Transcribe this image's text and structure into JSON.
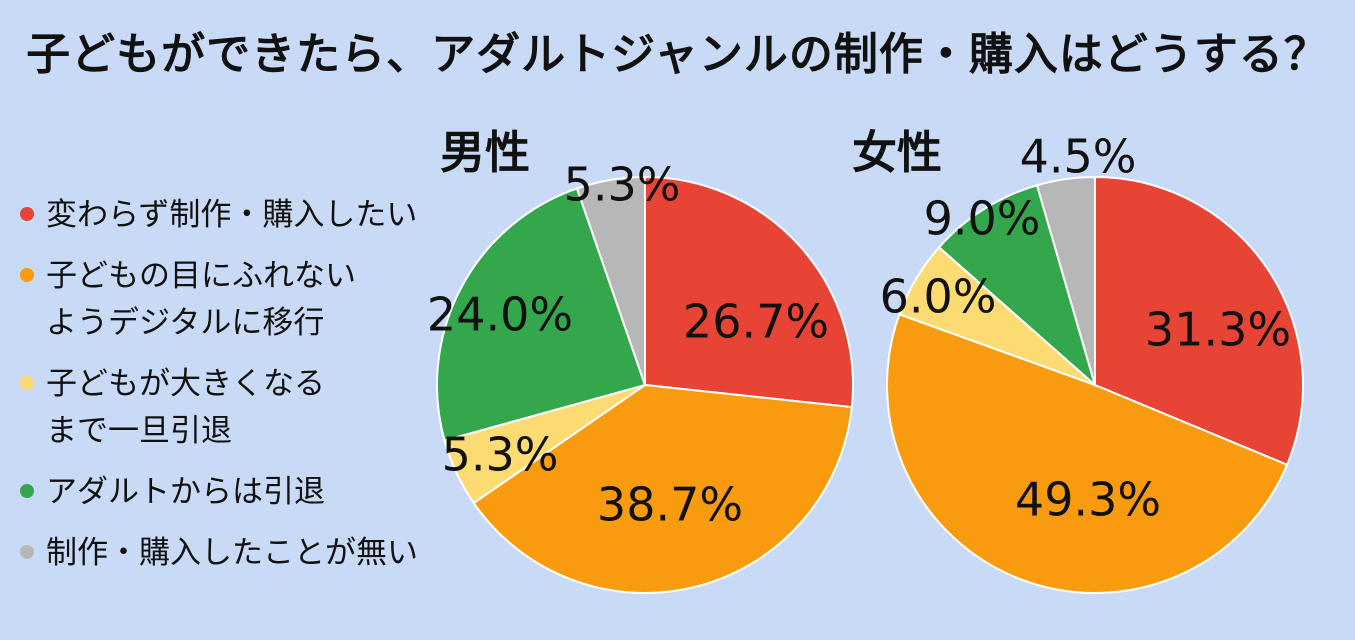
{
  "title": "子どもができたら、アダルトジャンルの制作・購入はどうする？",
  "chart_data": {
    "type": "pie",
    "title": "子どもができたら、アダルトジャンルの制作・購入はどうする？",
    "categories": [
      "変わらず制作・購入したい",
      "子どもの目にふれない\nようデジタルに移行",
      "子どもが大きくなる\nまで一旦引退",
      "アダルトからは引退",
      "制作・購入したことが無い"
    ],
    "colors": [
      "#e84436",
      "#f99b0e",
      "#fcdc72",
      "#34a74d",
      "#b7b7b7"
    ],
    "legend_position": "left",
    "charts": [
      {
        "name": "男性",
        "values": [
          26.7,
          38.7,
          5.3,
          24.0,
          5.3
        ],
        "labels": [
          "26.7%",
          "38.7%",
          "5.3%",
          "24.0%",
          "5.3%"
        ]
      },
      {
        "name": "女性",
        "values": [
          31.3,
          49.3,
          6.0,
          9.0,
          4.5
        ],
        "labels": [
          "31.3%",
          "49.3%",
          "6.0%",
          "9.0%",
          "4.5%"
        ]
      }
    ]
  }
}
